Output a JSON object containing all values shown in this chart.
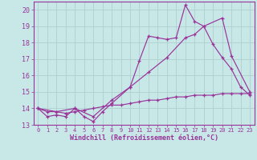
{
  "xlabel": "Windchill (Refroidissement éolien,°C)",
  "background_color": "#c8e8e8",
  "grid_color": "#b0d0d0",
  "line_color": "#993399",
  "xlim": [
    -0.5,
    23.5
  ],
  "ylim": [
    13,
    20.5
  ],
  "xticks": [
    0,
    1,
    2,
    3,
    4,
    5,
    6,
    7,
    8,
    9,
    10,
    11,
    12,
    13,
    14,
    15,
    16,
    17,
    18,
    19,
    20,
    21,
    22,
    23
  ],
  "yticks": [
    13,
    14,
    15,
    16,
    17,
    18,
    19,
    20
  ],
  "line1_x": [
    0,
    1,
    2,
    3,
    4,
    5,
    6,
    7,
    8,
    10,
    11,
    12,
    13,
    14,
    15,
    16,
    17,
    18,
    19,
    20,
    21,
    22,
    23
  ],
  "line1_y": [
    14.0,
    13.5,
    13.6,
    13.5,
    14.0,
    13.5,
    13.2,
    13.8,
    14.3,
    15.3,
    16.9,
    18.4,
    18.3,
    18.2,
    18.3,
    20.3,
    19.3,
    19.0,
    17.9,
    17.1,
    16.4,
    15.3,
    14.8
  ],
  "line2_x": [
    0,
    2,
    4,
    6,
    8,
    10,
    12,
    14,
    16,
    17,
    18,
    20,
    21,
    23
  ],
  "line2_y": [
    14.0,
    13.8,
    14.0,
    13.5,
    14.5,
    15.3,
    16.2,
    17.1,
    18.3,
    18.5,
    19.0,
    19.5,
    17.2,
    15.0
  ],
  "line3_x": [
    0,
    1,
    2,
    3,
    4,
    5,
    6,
    7,
    8,
    9,
    10,
    11,
    12,
    13,
    14,
    15,
    16,
    17,
    18,
    19,
    20,
    21,
    22,
    23
  ],
  "line3_y": [
    14.0,
    13.8,
    13.8,
    13.7,
    13.8,
    13.9,
    14.0,
    14.1,
    14.2,
    14.2,
    14.3,
    14.4,
    14.5,
    14.5,
    14.6,
    14.7,
    14.7,
    14.8,
    14.8,
    14.8,
    14.9,
    14.9,
    14.9,
    14.9
  ]
}
